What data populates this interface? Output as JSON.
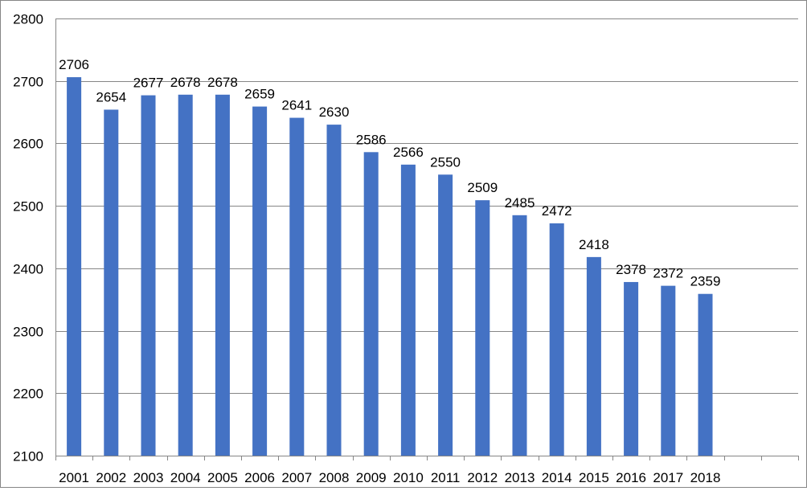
{
  "chart_data": {
    "type": "bar",
    "title": "",
    "xlabel": "",
    "ylabel": "",
    "categories": [
      "2001",
      "2002",
      "2003",
      "2004",
      "2005",
      "2006",
      "2007",
      "2008",
      "2009",
      "2010",
      "2011",
      "2012",
      "2013",
      "2014",
      "2015",
      "2016",
      "2017",
      "2018"
    ],
    "values": [
      2706,
      2654,
      2677,
      2678,
      2678,
      2659,
      2641,
      2630,
      2586,
      2566,
      2550,
      2509,
      2485,
      2472,
      2418,
      2378,
      2372,
      2359
    ],
    "ylim": [
      2100,
      2800
    ],
    "yticks": [
      2100,
      2200,
      2300,
      2400,
      2500,
      2600,
      2700,
      2800
    ],
    "grid": true,
    "legend": "none",
    "data_labels": true,
    "empty_trailing_slots": 2
  },
  "colors": {
    "bar": "#4472C4",
    "grid": "#868686",
    "axis": "#868686",
    "text": "#000000"
  }
}
